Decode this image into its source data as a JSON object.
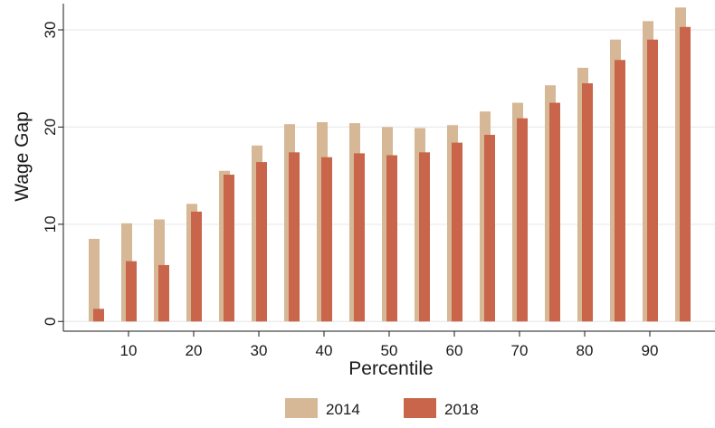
{
  "chart_data": {
    "type": "bar",
    "title": "",
    "xlabel": "Percentile",
    "ylabel": "Wage Gap",
    "x": [
      5,
      10,
      15,
      20,
      25,
      30,
      35,
      40,
      45,
      50,
      55,
      60,
      65,
      70,
      75,
      80,
      85,
      90,
      95
    ],
    "xticks": [
      "10",
      "20",
      "30",
      "40",
      "50",
      "60",
      "70",
      "80",
      "90"
    ],
    "yticks": [
      "0",
      "10",
      "20",
      "30"
    ],
    "xlim": [
      0,
      100
    ],
    "ylim": [
      -1,
      32.7
    ],
    "grid": true,
    "legend_position": "bottom",
    "series": [
      {
        "name": "2014",
        "color": "#d6b796",
        "values": [
          8.5,
          10.1,
          10.5,
          12.1,
          15.5,
          18.1,
          20.3,
          20.5,
          20.4,
          20.0,
          19.9,
          20.2,
          21.6,
          22.5,
          24.3,
          26.1,
          29.0,
          30.9,
          32.3
        ]
      },
      {
        "name": "2018",
        "color": "#c8654a",
        "values": [
          1.3,
          6.2,
          5.8,
          11.3,
          15.1,
          16.4,
          17.4,
          16.9,
          17.3,
          17.1,
          17.4,
          18.4,
          19.2,
          20.9,
          22.5,
          24.5,
          26.9,
          29.0,
          30.3
        ]
      }
    ]
  }
}
